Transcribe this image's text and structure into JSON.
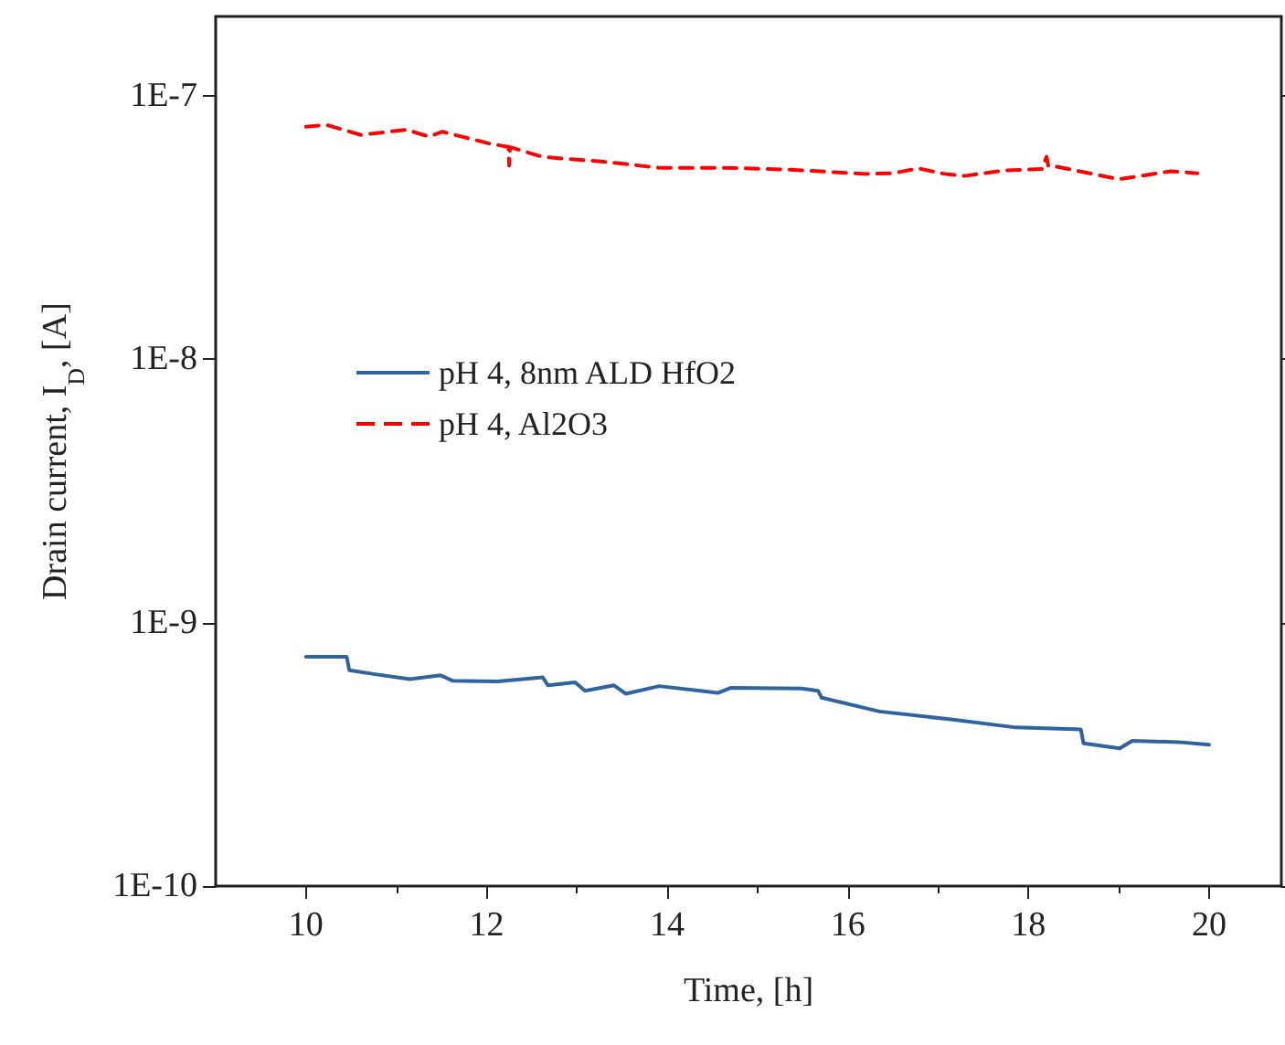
{
  "chart_data": {
    "type": "line",
    "xlabel": "Time, [h]",
    "ylabel": "Drain current, I$_{D}$, [A]",
    "log": "y",
    "xlim": [
      9,
      20.8
    ],
    "xticks": [
      10,
      12,
      14,
      16,
      18,
      20
    ],
    "ylim": [
      1e-10,
      2e-07
    ],
    "yticks": [
      {
        "value": 1e-10,
        "label": "1E-10"
      },
      {
        "value": 1e-09,
        "label": "1E-9"
      },
      {
        "value": 1e-08,
        "label": "1E-8"
      },
      {
        "value": 1e-07,
        "label": "1E-7"
      }
    ],
    "grid": false,
    "legend": "left",
    "marker": "none",
    "series": [
      {
        "name": "pH 4, 8nm ALD HfO2",
        "color": "#2e64a0",
        "line_style": "solid",
        "x": [
          10.0,
          10.45,
          10.48,
          10.75,
          11.15,
          11.49,
          11.62,
          12.12,
          12.62,
          12.68,
          12.98,
          13.09,
          13.41,
          13.54,
          13.91,
          14.56,
          14.7,
          15.49,
          15.67,
          15.71,
          16.35,
          17.14,
          17.86,
          18.58,
          18.61,
          19.01,
          19.15,
          19.66,
          20.0
        ],
        "values": [
          7.42e-10,
          7.42e-10,
          6.59e-10,
          6.38e-10,
          6.1e-10,
          6.31e-10,
          6.02e-10,
          5.98e-10,
          6.2e-10,
          5.78e-10,
          5.93e-10,
          5.51e-10,
          5.78e-10,
          5.37e-10,
          5.74e-10,
          5.41e-10,
          5.65e-10,
          5.62e-10,
          5.51e-10,
          5.19e-10,
          4.6e-10,
          4.29e-10,
          4e-10,
          3.93e-10,
          3.48e-10,
          3.33e-10,
          3.56e-10,
          3.52e-10,
          3.44e-10
        ]
      },
      {
        "name": "pH 4, Al2O3",
        "color": "#ff0000",
        "line_style": "dashed",
        "x": [
          10.0,
          10.22,
          10.61,
          11.11,
          11.36,
          11.51,
          12.05,
          12.24,
          12.25,
          12.26,
          12.62,
          13.34,
          13.91,
          14.63,
          15.35,
          16.21,
          16.5,
          16.78,
          17.07,
          17.29,
          17.72,
          18.15,
          18.2,
          18.22,
          18.29,
          19.0,
          19.58,
          19.87
        ],
        "values": [
          7.62e-08,
          7.76e-08,
          7.1e-08,
          7.43e-08,
          7e-08,
          7.3e-08,
          6.56e-08,
          6.4e-08,
          5.43e-08,
          6.38e-08,
          5.86e-08,
          5.6e-08,
          5.33e-08,
          5.33e-08,
          5.24e-08,
          5.05e-08,
          5.08e-08,
          5.3e-08,
          5.05e-08,
          4.96e-08,
          5.2e-08,
          5.27e-08,
          5.86e-08,
          5.4e-08,
          5.4e-08,
          4.82e-08,
          5.17e-08,
          5.08e-08
        ]
      }
    ]
  }
}
